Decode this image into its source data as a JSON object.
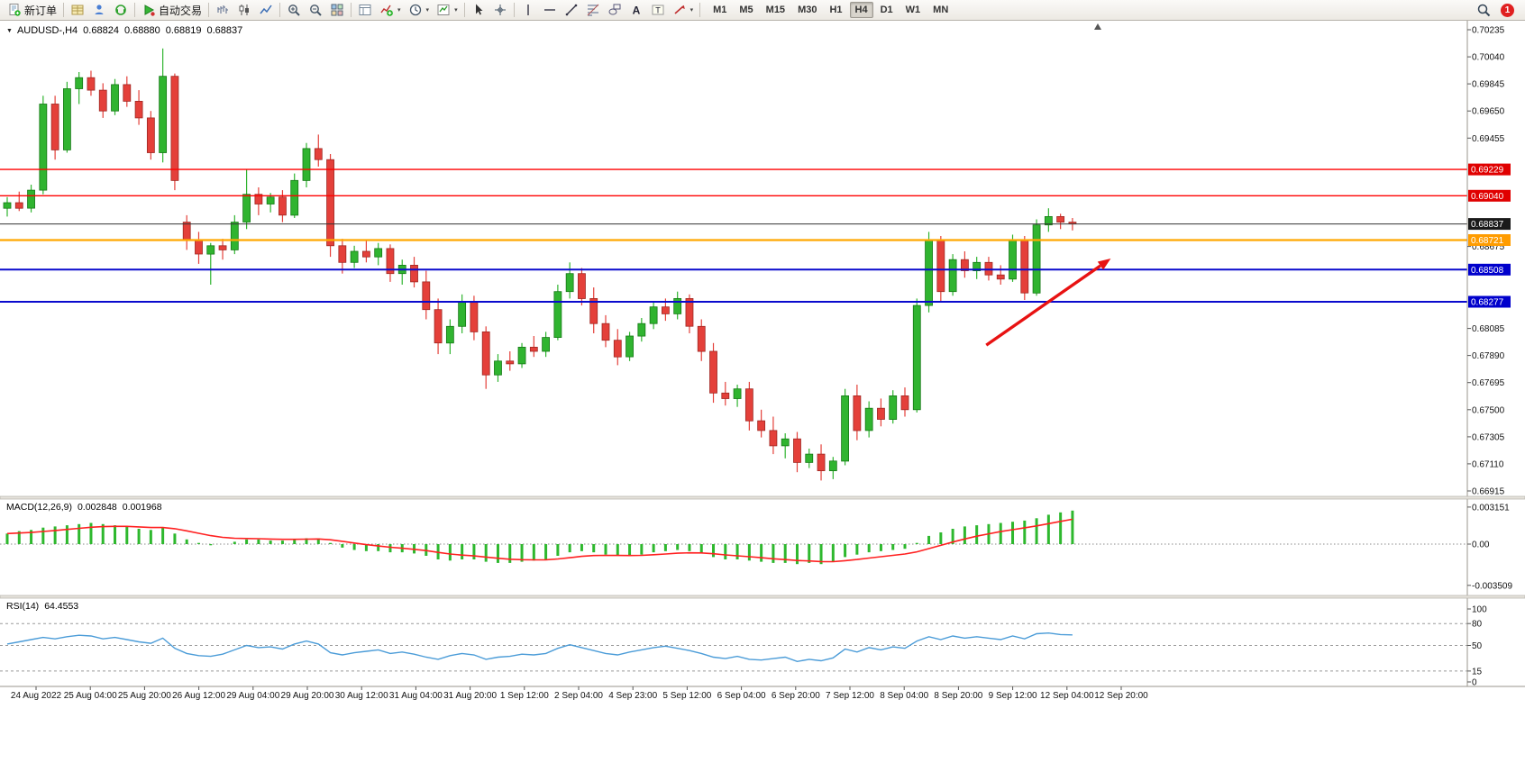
{
  "window": {
    "badge_count": "1"
  },
  "toolbar": {
    "groups": [
      {
        "items": [
          {
            "name": "new-order",
            "icon": "doc",
            "label": "新订单"
          }
        ]
      },
      {
        "items": [
          {
            "name": "market-watch",
            "icon": "grid-yellow"
          },
          {
            "name": "navigator",
            "icon": "person"
          },
          {
            "name": "terminal",
            "icon": "headset"
          }
        ]
      },
      {
        "items": [
          {
            "name": "autotrading",
            "icon": "play",
            "label": "自动交易"
          }
        ]
      },
      {
        "items": [
          {
            "name": "chart-bars",
            "icon": "bars"
          },
          {
            "name": "chart-candles",
            "icon": "candles"
          },
          {
            "name": "chart-line",
            "icon": "linechart"
          }
        ]
      },
      {
        "items": [
          {
            "name": "zoom-in",
            "icon": "zoomin"
          },
          {
            "name": "zoom-out",
            "icon": "zoomout"
          },
          {
            "name": "tile-windows",
            "icon": "tiles"
          }
        ]
      },
      {
        "items": [
          {
            "name": "arrange-charts",
            "icon": "arrange"
          },
          {
            "name": "indicators",
            "icon": "indicators",
            "dropdown": true
          },
          {
            "name": "periods",
            "icon": "clock",
            "dropdown": true
          },
          {
            "name": "templates",
            "icon": "template",
            "dropdown": true
          }
        ]
      },
      {
        "items": [
          {
            "name": "cursor",
            "icon": "cursor"
          },
          {
            "name": "crosshair",
            "icon": "crosshair"
          }
        ]
      },
      {
        "items": [
          {
            "name": "vertical-line",
            "icon": "vline"
          },
          {
            "name": "horizontal-line",
            "icon": "hline"
          },
          {
            "name": "trendline",
            "icon": "tline"
          },
          {
            "name": "fibonacci",
            "icon": "fibo"
          },
          {
            "name": "shapes",
            "icon": "shapes"
          },
          {
            "name": "text",
            "icon": "texta"
          },
          {
            "name": "text-label",
            "icon": "textt"
          },
          {
            "name": "arrows",
            "icon": "arrowicon",
            "dropdown": true
          }
        ]
      }
    ],
    "timeframes": {
      "items": [
        "M1",
        "M5",
        "M15",
        "M30",
        "H1",
        "H4",
        "D1",
        "W1",
        "MN"
      ],
      "active": "H4"
    }
  },
  "chart": {
    "title": {
      "symbol": "AUDUSD-,H4",
      "open": "0.68824",
      "high": "0.68880",
      "low": "0.68819",
      "close": "0.68837"
    },
    "price_axis": {
      "ticks": [
        0.70235,
        0.7004,
        0.69845,
        0.6965,
        0.69455,
        0.68675,
        0.68085,
        0.6789,
        0.67695,
        0.675,
        0.67305,
        0.6711,
        0.66915
      ]
    },
    "levels": [
      {
        "name": "resistance-line-1",
        "price": 0.69229,
        "label": "0.69229",
        "color": "#ff0000",
        "badge": "#e00000",
        "width": 1.4
      },
      {
        "name": "resistance-line-2",
        "price": 0.6904,
        "label": "0.69040",
        "color": "#ff0000",
        "badge": "#e00000",
        "width": 1.4
      },
      {
        "name": "current-price-line",
        "price": 0.68837,
        "label": "0.68837",
        "color": "#333333",
        "badge": "#1a1a1a",
        "width": 1
      },
      {
        "name": "pivot-line",
        "price": 0.68721,
        "label": "0.68721",
        "color": "#ffa800",
        "badge": "#ff9c00",
        "width": 2.2
      },
      {
        "name": "support-line-1",
        "price": 0.68508,
        "label": "0.68508",
        "color": "#0a0acd",
        "badge": "#0000cc",
        "width": 2
      },
      {
        "name": "support-line-2",
        "price": 0.68277,
        "label": "0.68277",
        "color": "#0a0acd",
        "badge": "#0000cc",
        "width": 2
      }
    ],
    "time_axis": {
      "labels": [
        "24 Aug 2022",
        "25 Aug 04:00",
        "25 Aug 20:00",
        "26 Aug 12:00",
        "29 Aug 04:00",
        "29 Aug 20:00",
        "30 Aug 12:00",
        "31 Aug 04:00",
        "31 Aug 20:00",
        "1 Sep 12:00",
        "2 Sep 04:00",
        "4 Sep 23:00",
        "5 Sep 12:00",
        "6 Sep 04:00",
        "6 Sep 20:00",
        "7 Sep 12:00",
        "8 Sep 04:00",
        "8 Sep 20:00",
        "9 Sep 12:00",
        "12 Sep 04:00",
        "12 Sep 20:00"
      ]
    },
    "indicators": {
      "macd": {
        "label": "MACD(12,26,9)",
        "main": "0.002848",
        "signal": "0.001968",
        "axis": [
          "0.003151",
          "0.00",
          "-0.003509"
        ]
      },
      "rsi": {
        "label": "RSI(14)",
        "value": "64.4553",
        "axis": [
          "100",
          "80",
          "50",
          "15",
          "0"
        ],
        "levels": [
          80,
          50,
          15
        ]
      }
    }
  },
  "annotations": {
    "trend_arrow": {
      "from_bar": 81.8,
      "from_price": 0.67965,
      "to_bar": 92.2,
      "to_price": 0.68588,
      "color": "#e81212",
      "width": 3.4
    }
  },
  "chart_data": [
    {
      "type": "candlestick",
      "symbol": "AUDUSD",
      "period": "H4",
      "ylim": [
        0.66915,
        0.70235
      ],
      "up_color": "#30b430",
      "down_color": "#e4403a",
      "ohlc": [
        [
          0.6895,
          0.6903,
          0.6889,
          0.6899
        ],
        [
          0.6899,
          0.6907,
          0.6893,
          0.6895
        ],
        [
          0.6895,
          0.6912,
          0.6892,
          0.6908
        ],
        [
          0.6908,
          0.6976,
          0.6905,
          0.697
        ],
        [
          0.697,
          0.6976,
          0.693,
          0.6937
        ],
        [
          0.6937,
          0.6986,
          0.6935,
          0.6981
        ],
        [
          0.6981,
          0.6993,
          0.697,
          0.6989
        ],
        [
          0.6989,
          0.6994,
          0.6976,
          0.698
        ],
        [
          0.698,
          0.6985,
          0.696,
          0.6965
        ],
        [
          0.6965,
          0.6988,
          0.6962,
          0.6984
        ],
        [
          0.6984,
          0.699,
          0.6968,
          0.6972
        ],
        [
          0.6972,
          0.698,
          0.6955,
          0.696
        ],
        [
          0.696,
          0.6965,
          0.693,
          0.6935
        ],
        [
          0.6935,
          0.701,
          0.6928,
          0.699
        ],
        [
          0.699,
          0.6992,
          0.6908,
          0.6915
        ],
        [
          0.6885,
          0.689,
          0.6865,
          0.6872
        ],
        [
          0.6872,
          0.6878,
          0.6855,
          0.6862
        ],
        [
          0.6862,
          0.687,
          0.684,
          0.6868
        ],
        [
          0.6868,
          0.6873,
          0.6858,
          0.6865
        ],
        [
          0.6865,
          0.689,
          0.6862,
          0.6885
        ],
        [
          0.6885,
          0.6923,
          0.688,
          0.6905
        ],
        [
          0.6905,
          0.691,
          0.689,
          0.6898
        ],
        [
          0.6898,
          0.6906,
          0.6892,
          0.6903
        ],
        [
          0.6903,
          0.6908,
          0.6885,
          0.689
        ],
        [
          0.689,
          0.692,
          0.6888,
          0.6915
        ],
        [
          0.6915,
          0.6942,
          0.691,
          0.6938
        ],
        [
          0.6938,
          0.6948,
          0.6925,
          0.693
        ],
        [
          0.693,
          0.6934,
          0.686,
          0.6868
        ],
        [
          0.6868,
          0.6873,
          0.6848,
          0.6856
        ],
        [
          0.6856,
          0.6868,
          0.6852,
          0.6864
        ],
        [
          0.6864,
          0.6872,
          0.6856,
          0.686
        ],
        [
          0.686,
          0.687,
          0.6854,
          0.6866
        ],
        [
          0.6866,
          0.6869,
          0.6842,
          0.6848
        ],
        [
          0.6848,
          0.6858,
          0.684,
          0.6854
        ],
        [
          0.6854,
          0.686,
          0.6838,
          0.6842
        ],
        [
          0.6842,
          0.685,
          0.6815,
          0.6822
        ],
        [
          0.6822,
          0.683,
          0.679,
          0.6798
        ],
        [
          0.6798,
          0.6815,
          0.679,
          0.681
        ],
        [
          0.681,
          0.6833,
          0.6805,
          0.6828
        ],
        [
          0.6828,
          0.6832,
          0.68,
          0.6806
        ],
        [
          0.6806,
          0.681,
          0.6765,
          0.6775
        ],
        [
          0.6775,
          0.679,
          0.677,
          0.6785
        ],
        [
          0.6785,
          0.6792,
          0.6778,
          0.6783
        ],
        [
          0.6783,
          0.6798,
          0.678,
          0.6795
        ],
        [
          0.6795,
          0.6803,
          0.6788,
          0.6792
        ],
        [
          0.6792,
          0.6806,
          0.6788,
          0.6802
        ],
        [
          0.6802,
          0.684,
          0.68,
          0.6835
        ],
        [
          0.6835,
          0.6856,
          0.683,
          0.6848
        ],
        [
          0.6848,
          0.6852,
          0.6825,
          0.683
        ],
        [
          0.683,
          0.6838,
          0.6805,
          0.6812
        ],
        [
          0.6812,
          0.6818,
          0.6795,
          0.68
        ],
        [
          0.68,
          0.6808,
          0.6782,
          0.6788
        ],
        [
          0.6788,
          0.6806,
          0.6785,
          0.6803
        ],
        [
          0.6803,
          0.6816,
          0.6799,
          0.6812
        ],
        [
          0.6812,
          0.6828,
          0.6808,
          0.6824
        ],
        [
          0.6824,
          0.683,
          0.6814,
          0.6819
        ],
        [
          0.6819,
          0.6835,
          0.6815,
          0.683
        ],
        [
          0.683,
          0.6833,
          0.6805,
          0.681
        ],
        [
          0.681,
          0.6815,
          0.6785,
          0.6792
        ],
        [
          0.6792,
          0.6798,
          0.6755,
          0.6762
        ],
        [
          0.6762,
          0.677,
          0.6753,
          0.6758
        ],
        [
          0.6758,
          0.6768,
          0.6752,
          0.6765
        ],
        [
          0.6765,
          0.677,
          0.6735,
          0.6742
        ],
        [
          0.6742,
          0.675,
          0.673,
          0.6735
        ],
        [
          0.6735,
          0.6745,
          0.6718,
          0.6724
        ],
        [
          0.6724,
          0.6733,
          0.6715,
          0.6729
        ],
        [
          0.6729,
          0.6734,
          0.6705,
          0.6712
        ],
        [
          0.6712,
          0.6722,
          0.6708,
          0.6718
        ],
        [
          0.6718,
          0.6725,
          0.6699,
          0.6706
        ],
        [
          0.6706,
          0.6716,
          0.67,
          0.6713
        ],
        [
          0.6713,
          0.6765,
          0.671,
          0.676
        ],
        [
          0.676,
          0.6768,
          0.6728,
          0.6735
        ],
        [
          0.6735,
          0.6756,
          0.673,
          0.6751
        ],
        [
          0.6751,
          0.6758,
          0.6738,
          0.6743
        ],
        [
          0.6743,
          0.6764,
          0.674,
          0.676
        ],
        [
          0.676,
          0.6766,
          0.6745,
          0.675
        ],
        [
          0.675,
          0.683,
          0.6748,
          0.6825
        ],
        [
          0.6825,
          0.6878,
          0.682,
          0.6872
        ],
        [
          0.6872,
          0.6875,
          0.6828,
          0.6835
        ],
        [
          0.6835,
          0.6862,
          0.6832,
          0.6858
        ],
        [
          0.6858,
          0.6864,
          0.6845,
          0.685
        ],
        [
          0.685,
          0.686,
          0.6844,
          0.6856
        ],
        [
          0.6856,
          0.686,
          0.6843,
          0.6847
        ],
        [
          0.6847,
          0.6854,
          0.684,
          0.6844
        ],
        [
          0.6844,
          0.6876,
          0.6842,
          0.6872
        ],
        [
          0.6872,
          0.6875,
          0.6829,
          0.6834
        ],
        [
          0.6834,
          0.6887,
          0.6832,
          0.6883
        ],
        [
          0.6883,
          0.6895,
          0.6878,
          0.6889
        ],
        [
          0.6889,
          0.6891,
          0.688,
          0.6885
        ],
        [
          0.6885,
          0.6888,
          0.6879,
          0.68837
        ]
      ]
    },
    {
      "type": "bar",
      "name": "MACD(12,26,9)",
      "ylim": [
        -0.003509,
        0.003151
      ],
      "bar_color": "#2eb82e",
      "signal_color": "#ff2020",
      "signal_period": 9,
      "values": [
        0.0009,
        0.0011,
        0.0012,
        0.0014,
        0.0015,
        0.0016,
        0.0017,
        0.0018,
        0.0017,
        0.0016,
        0.0015,
        0.0013,
        0.0012,
        0.0014,
        0.0009,
        0.0004,
        0.0001,
        -0.0001,
        0.0,
        0.0002,
        0.0004,
        0.0004,
        0.0003,
        0.0003,
        0.0004,
        0.0005,
        0.0005,
        0.0001,
        -0.0003,
        -0.0005,
        -0.0006,
        -0.0006,
        -0.0007,
        -0.0007,
        -0.0008,
        -0.001,
        -0.0013,
        -0.0014,
        -0.0013,
        -0.0013,
        -0.0015,
        -0.0016,
        -0.0016,
        -0.0015,
        -0.0014,
        -0.0013,
        -0.001,
        -0.0007,
        -0.0006,
        -0.0007,
        -0.0009,
        -0.001,
        -0.001,
        -0.0009,
        -0.0007,
        -0.0006,
        -0.0005,
        -0.0006,
        -0.0008,
        -0.0011,
        -0.0013,
        -0.0013,
        -0.0014,
        -0.0015,
        -0.0016,
        -0.0016,
        -0.0017,
        -0.0016,
        -0.0017,
        -0.0015,
        -0.0011,
        -0.0009,
        -0.0007,
        -0.0006,
        -0.0005,
        -0.0004,
        0.0001,
        0.0007,
        0.001,
        0.0013,
        0.0015,
        0.0016,
        0.0017,
        0.0018,
        0.0019,
        0.002,
        0.0022,
        0.0025,
        0.0027,
        0.002848
      ]
    },
    {
      "type": "line",
      "name": "RSI(14)",
      "ylim": [
        0,
        100
      ],
      "line_color": "#4b9cd8",
      "values": [
        52,
        55,
        58,
        61,
        59,
        62,
        64,
        63,
        59,
        61,
        58,
        55,
        53,
        60,
        46,
        39,
        36,
        35,
        38,
        44,
        50,
        47,
        48,
        45,
        52,
        56,
        52,
        40,
        37,
        40,
        42,
        44,
        39,
        41,
        38,
        34,
        31,
        36,
        39,
        37,
        31,
        34,
        35,
        38,
        37,
        39,
        46,
        51,
        47,
        43,
        39,
        37,
        41,
        44,
        47,
        49,
        46,
        43,
        39,
        34,
        32,
        35,
        31,
        30,
        32,
        34,
        28,
        31,
        29,
        33,
        45,
        41,
        47,
        44,
        48,
        46,
        56,
        62,
        58,
        63,
        60,
        62,
        60,
        58,
        63,
        59,
        66,
        67,
        65,
        64.46
      ]
    }
  ]
}
